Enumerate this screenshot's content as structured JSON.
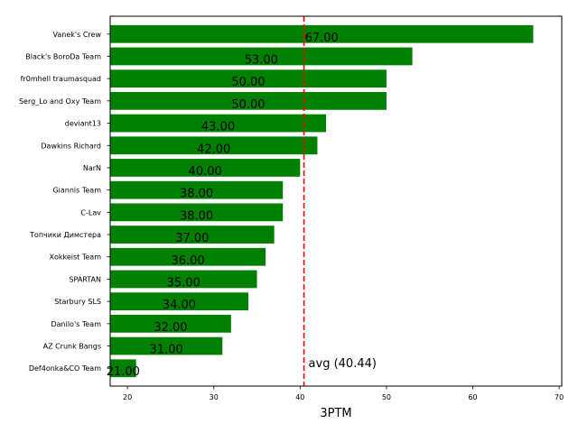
{
  "chart_data": {
    "type": "bar",
    "orientation": "horizontal",
    "categories": [
      "Vanek's Crew",
      "Black's BoroDa Team",
      "fr0mhell traumasquad",
      "Serg_Lo and Oxy Team",
      "deviant13",
      "Dawkins Richard",
      "NarN",
      "Giannis Team",
      "C-Lav",
      "Топчики Димстера",
      "Xokkeist Team",
      "SPARTAN",
      "Starbury SLS",
      "Danilo's Team",
      "AZ Crunk Bangs",
      "Def4onka&CO Team"
    ],
    "values": [
      67,
      53,
      50,
      50,
      43,
      42,
      40,
      38,
      38,
      37,
      36,
      35,
      34,
      32,
      31,
      21
    ],
    "value_labels": [
      "67.00",
      "53.00",
      "50.00",
      "50.00",
      "43.00",
      "42.00",
      "40.00",
      "38.00",
      "38.00",
      "37.00",
      "36.00",
      "35.00",
      "34.00",
      "32.00",
      "31.00",
      "21.00"
    ],
    "bar_color": "#008000",
    "xlabel": "3PTM",
    "xlim": [
      18,
      70.3
    ],
    "xticks": [
      20,
      30,
      40,
      50,
      60,
      70
    ],
    "average": {
      "value": 40.44,
      "label": "avg (40.44)",
      "color": "#ff0000",
      "style": "dashed"
    },
    "grid": false
  }
}
